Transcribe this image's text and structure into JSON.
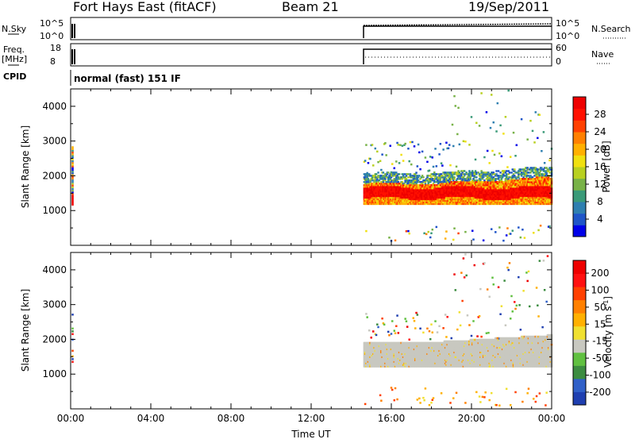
{
  "header": {
    "station": "Fort Hays East (fitACF)",
    "beam": "Beam 21",
    "date": "19/Sep/2011"
  },
  "params": {
    "nsky_label": "N.Sky",
    "nsky_ticks": [
      "10^5",
      "10^0"
    ],
    "nsearch_label": "N.Search",
    "nsearch_ticks": [
      "10^5",
      "10^0"
    ],
    "freq_label": "Freq.",
    "freq_unit": "[MHz]",
    "freq_ticks": [
      "18",
      "8"
    ],
    "nave_label": "Nave",
    "nave_ticks": [
      "60",
      "0"
    ],
    "cpid_label": "CPID",
    "cpid_value": "normal (fast) 151 IF"
  },
  "colors": {
    "axis": "#000000",
    "background": "#ffffff",
    "ground_scatter": "#c8c8c0"
  },
  "chart_data": [
    {
      "type": "heatmap",
      "name": "power-panel",
      "ylabel": "Slant Range [km]",
      "yticks": [
        1000,
        2000,
        3000,
        4000
      ],
      "ylim": [
        0,
        4500
      ],
      "xticks": [
        "00:00",
        "04:00",
        "08:00",
        "12:00",
        "16:00",
        "20:00",
        "00:00"
      ],
      "xlim_hours": [
        0,
        24
      ],
      "colorbar": {
        "label": "Power [dB]",
        "ticks": [
          "4",
          "8",
          "12",
          "16",
          "20",
          "24",
          "28"
        ],
        "colors": [
          "#0000e8",
          "#1f55c8",
          "#2e7fb0",
          "#3a9a78",
          "#78b248",
          "#b8d020",
          "#f0e010",
          "#ffb000",
          "#ff8000",
          "#ff4000",
          "#ff1000",
          "#ee0000"
        ]
      },
      "features": [
        {
          "kind": "band",
          "t_start": 14.6,
          "t_end": 24.0,
          "range_low": 1350,
          "range_high": 1750,
          "value": "strong"
        },
        {
          "kind": "band",
          "t_start": 14.6,
          "t_end": 24.0,
          "range_low": 1200,
          "range_high": 2100,
          "value": "moderate"
        },
        {
          "kind": "patch",
          "t_start": 0.0,
          "t_end": 0.2,
          "range_low": 1200,
          "range_high": 2900,
          "value": "mixed"
        },
        {
          "kind": "scatter",
          "t_start": 14.6,
          "t_end": 24.0,
          "range_low": 2100,
          "range_high": 4500,
          "value": "weak"
        },
        {
          "kind": "scatter",
          "t_start": 14.6,
          "t_end": 24.0,
          "range_low": 150,
          "range_high": 600,
          "value": "weak"
        }
      ]
    },
    {
      "type": "heatmap",
      "name": "velocity-panel",
      "ylabel": "Slant Range [km]",
      "yticks": [
        1000,
        2000,
        3000,
        4000
      ],
      "ylim": [
        0,
        4500
      ],
      "xticks": [
        "00:00",
        "04:00",
        "08:00",
        "12:00",
        "16:00",
        "20:00",
        "00:00"
      ],
      "xlabel": "Time UT",
      "xlim_hours": [
        0,
        24
      ],
      "colorbar": {
        "label": "Velocity [m s",
        "label_sup": "-1",
        "label_end": "]",
        "ticks": [
          "200",
          "100",
          "50",
          "15",
          "-15",
          "-50",
          "-100",
          "-200"
        ],
        "colors": [
          "#1f3fb0",
          "#3060c8",
          "#3c8c40",
          "#60c040",
          "#c8c8c0",
          "#f0e030",
          "#ffb000",
          "#ff8000",
          "#ff4000",
          "#ff1010",
          "#ee0000"
        ]
      },
      "features": [
        {
          "kind": "band",
          "t_start": 14.6,
          "t_end": 24.0,
          "range_low": 1250,
          "range_high": 2000,
          "value": "ground-scatter"
        },
        {
          "kind": "scatter",
          "t_start": 14.6,
          "t_end": 24.0,
          "range_low": 2000,
          "range_high": 4500,
          "value": "mixed"
        },
        {
          "kind": "scatter",
          "t_start": 14.6,
          "t_end": 24.0,
          "range_low": 100,
          "range_high": 700,
          "value": "mixed"
        }
      ]
    }
  ]
}
